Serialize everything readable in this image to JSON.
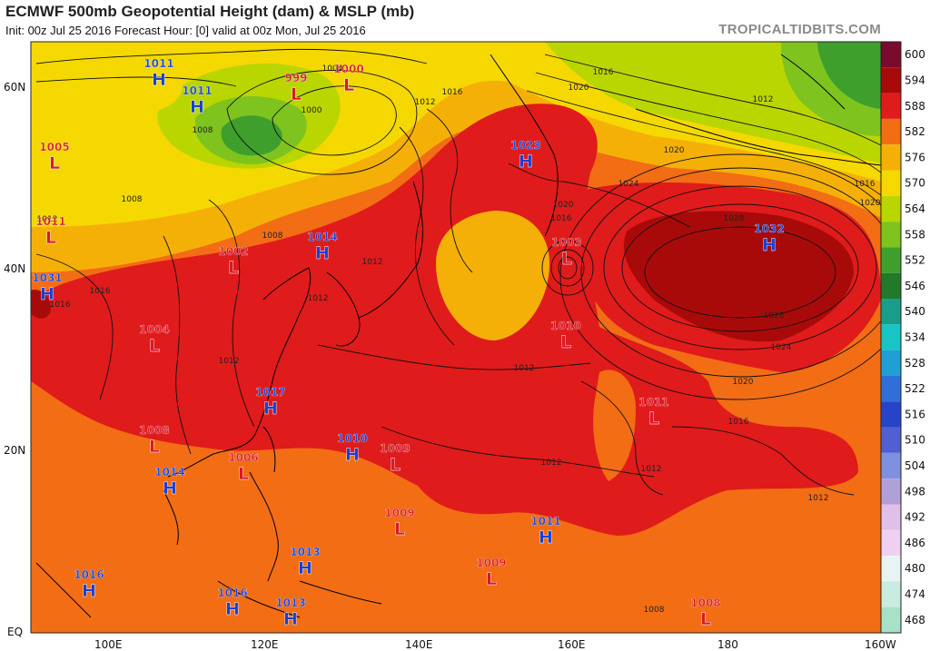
{
  "header": {
    "title": "ECMWF 500mb Geopotential Height (dam) & MSLP (mb)",
    "subtitle": "Init: 00z Jul 25 2016   Forecast Hour: [0]   valid at 00z Mon, Jul 25 2016",
    "brand": "TROPICALTIDBITS.COM"
  },
  "axes": {
    "lat_labels": [
      "60N",
      "40N",
      "20N",
      "EQ"
    ],
    "lon_labels": [
      "100E",
      "120E",
      "140E",
      "160E",
      "180",
      "160W"
    ]
  },
  "colorbar": {
    "labels": [
      "600",
      "594",
      "588",
      "582",
      "576",
      "570",
      "564",
      "558",
      "552",
      "546",
      "540",
      "534",
      "528",
      "522",
      "516",
      "510",
      "504",
      "498",
      "492",
      "486",
      "480",
      "474",
      "468"
    ],
    "colors": [
      "#7a0b2c",
      "#a80a0a",
      "#e01b1b",
      "#f26d14",
      "#f5b008",
      "#f5d800",
      "#b9d600",
      "#7fc31e",
      "#3f9f2d",
      "#217a2a",
      "#1a9c8a",
      "#19c4c4",
      "#1f9fd6",
      "#2f6fd8",
      "#2744c8",
      "#5060d0",
      "#8090e0",
      "#b0a0d8",
      "#e0c0e8",
      "#f0d0f0",
      "#e8f4f4",
      "#c8ece0",
      "#a8e0c8"
    ]
  },
  "pressure_systems": [
    {
      "type": "H",
      "value": "1011",
      "color": "#1540d8"
    },
    {
      "type": "H",
      "value": "1011",
      "color": "#1540d8"
    },
    {
      "type": "L",
      "value": "999",
      "color": "#d81a2a"
    },
    {
      "type": "L",
      "value": "1000",
      "color": "#d81a2a"
    },
    {
      "type": "L",
      "value": "1005",
      "color": "#d81a2a"
    },
    {
      "type": "L",
      "value": "1011",
      "color": "#d81a2a"
    },
    {
      "type": "H",
      "value": "1031",
      "color": "#1540d8"
    },
    {
      "type": "L",
      "value": "1002",
      "color": "#d81a2a"
    },
    {
      "type": "H",
      "value": "1014",
      "color": "#1540d8"
    },
    {
      "type": "H",
      "value": "1023",
      "color": "#1540d8"
    },
    {
      "type": "L",
      "value": "1003",
      "color": "#d81a2a"
    },
    {
      "type": "H",
      "value": "1032",
      "color": "#1540d8"
    },
    {
      "type": "L",
      "value": "1004",
      "color": "#d81a2a"
    },
    {
      "type": "L",
      "value": "1010",
      "color": "#d81a2a"
    },
    {
      "type": "H",
      "value": "1017",
      "color": "#1540d8"
    },
    {
      "type": "L",
      "value": "1011",
      "color": "#d81a2a"
    },
    {
      "type": "L",
      "value": "1008",
      "color": "#d81a2a"
    },
    {
      "type": "H",
      "value": "1010",
      "color": "#1540d8"
    },
    {
      "type": "L",
      "value": "1009",
      "color": "#d81a2a"
    },
    {
      "type": "L",
      "value": "1006",
      "color": "#d81a2a"
    },
    {
      "type": "H",
      "value": "1014",
      "color": "#1540d8"
    },
    {
      "type": "L",
      "value": "1009",
      "color": "#d81a2a"
    },
    {
      "type": "H",
      "value": "1011",
      "color": "#1540d8"
    },
    {
      "type": "H",
      "value": "1013",
      "color": "#1540d8"
    },
    {
      "type": "L",
      "value": "1009",
      "color": "#d81a2a"
    },
    {
      "type": "H",
      "value": "1016",
      "color": "#1540d8"
    },
    {
      "type": "H",
      "value": "1016",
      "color": "#1540d8"
    },
    {
      "type": "H",
      "value": "1013",
      "color": "#1540d8"
    },
    {
      "type": "L",
      "value": "1008",
      "color": "#d81a2a"
    }
  ],
  "isobar_labels": [
    "1004",
    "1000",
    "1016",
    "1020",
    "1012",
    "1008",
    "1012",
    "1016",
    "1008",
    "1012",
    "1008",
    "1020",
    "1016",
    "1020",
    "1016",
    "1024",
    "1028",
    "1028",
    "1024",
    "1020",
    "1016",
    "1012",
    "1012",
    "1012",
    "1012",
    "1008",
    "1012",
    "1016",
    "1012",
    "1020",
    "1016",
    "1012"
  ]
}
